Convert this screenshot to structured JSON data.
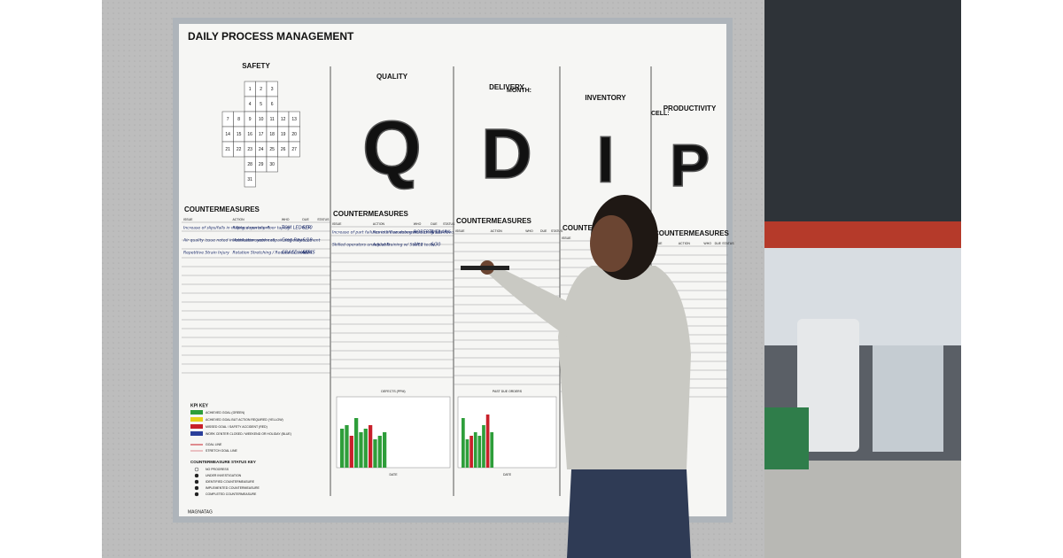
{
  "board": {
    "title": "DAILY PROCESS MANAGEMENT",
    "month_label": "MONTH:",
    "cell_label": "CELL:",
    "brand": "MAGNATAG",
    "countermeasures_title": "COUNTERMEASURES",
    "columns": [
      "ISSUE",
      "ACTION",
      "WHO",
      "DUE",
      "STATUS"
    ],
    "safety_days": [
      1,
      2,
      3,
      4,
      5,
      6,
      7,
      8,
      9,
      10,
      11,
      12,
      13,
      14,
      15,
      16,
      17,
      18,
      19,
      20,
      21,
      22,
      23,
      24,
      25,
      26,
      27,
      28,
      29,
      30,
      31
    ],
    "sections": [
      {
        "title": "SAFETY",
        "rows": [
          [
            "Increase of slips/falls in milling department",
            "Replace non-slip floor taping",
            "TOM LEDGER",
            "6/30"
          ],
          [
            "Air quality issue noted in fabrication work cell",
            "Ventilation system repair and enhancement",
            "Greg Ray",
            "6/18"
          ],
          [
            "Repetitive Strain Injury",
            "Rotation Stretching / Reduce Actuation",
            "GRACE HARRIS",
            "6/24"
          ]
        ]
      },
      {
        "title": "QUALITY",
        "letter": "Q",
        "rows": [
          [
            "Increase of part failures in life assessments",
            "Remote flow debug increasing test flows",
            "ROBERTA CLARK",
            "6/10"
          ],
          [
            "Skilled operators unavailable",
            "Adjust Training w/ Staff 2 techs",
            "Alex",
            "6/30"
          ]
        ]
      },
      {
        "title": "DELIVERY",
        "letter": "D",
        "rows": []
      },
      {
        "title": "INVENTORY",
        "letter": "I",
        "rows": []
      },
      {
        "title": "PRODUCTIVITY",
        "letter": "P",
        "rows": []
      }
    ],
    "kpi_key": {
      "title": "KPI KEY",
      "items": [
        {
          "label": "ACHIEVED GOAL (GREEN)",
          "color": "#2e9e3a"
        },
        {
          "label": "ACHIEVED GOAL BUT ACTION REQUIRED (YELLOW)",
          "color": "#e6d21c"
        },
        {
          "label": "MISSED GOAL / SAFETY ACCIDENT (RED)",
          "color": "#c8202a"
        },
        {
          "label": "WORK CENTER CLOSED / WEEKEND OR HOLIDAY (BLUE)",
          "color": "#2a3f9a"
        }
      ],
      "lines": [
        "GOAL LINE",
        "STRETCH GOAL LINE"
      ]
    },
    "status_key": {
      "title": "COUNTERMEASURE STATUS KEY",
      "items": [
        "NO PROGRESS",
        "UNDER INVESTIGATION",
        "IDENTIFIED COUNTERMEASURE",
        "IMPLEMENTED COUNTERMEASURE",
        "COMPLETED COUNTERMEASURE"
      ]
    },
    "charts": [
      {
        "title": "DEFECTS (PPM)",
        "x_label": "DATE",
        "ylim": [
          0,
          100
        ],
        "values": [
          55,
          60,
          45,
          70,
          50,
          55,
          60,
          40,
          45,
          50
        ]
      },
      {
        "title": "PAST DUE ORDERS",
        "x_label": "DATE",
        "ylim": [
          0,
          100
        ],
        "values": [
          70,
          40,
          45,
          50,
          45,
          60,
          75,
          50
        ]
      }
    ]
  }
}
